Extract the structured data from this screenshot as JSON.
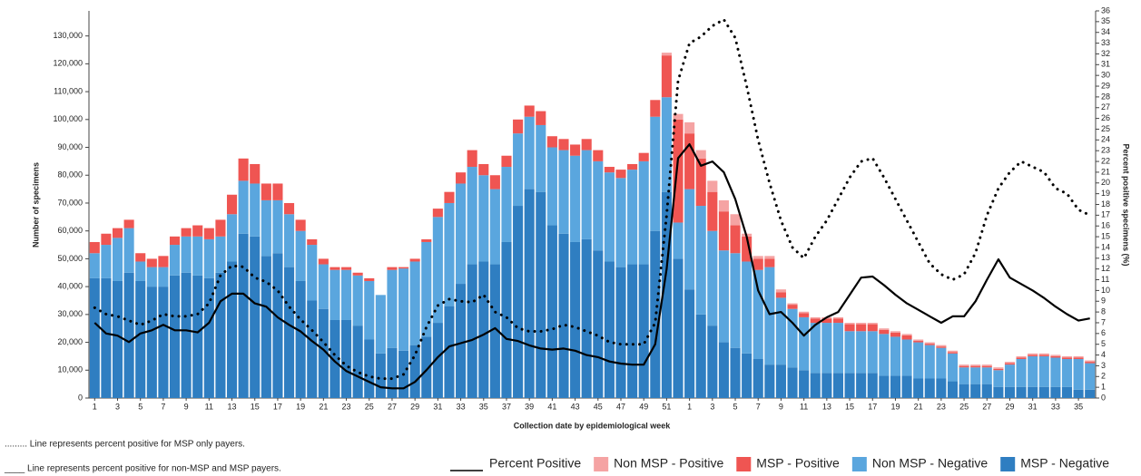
{
  "chart_data": {
    "type": "stacked-bar",
    "x_label": "Collection date by epidemiological week",
    "y_label": "Number of specimens",
    "y2_label": "Percent positive specimens (%)",
    "notes": [
      "......... Line represents percent positive for MSP only payers.",
      "____ Line represents percent positive for non-MSP and MSP payers."
    ],
    "categories": [
      "1",
      null,
      "3",
      null,
      "5",
      null,
      "7",
      null,
      "9",
      null,
      "11",
      null,
      "13",
      null,
      "15",
      null,
      "17",
      null,
      "19",
      null,
      "21",
      null,
      "23",
      null,
      "25",
      null,
      "27",
      null,
      "29",
      null,
      "31",
      null,
      "33",
      null,
      "35",
      null,
      "37",
      null,
      "39",
      null,
      "41",
      null,
      "43",
      null,
      "45",
      null,
      "47",
      null,
      "49",
      null,
      "51",
      null,
      "1",
      null,
      "3",
      null,
      "5",
      null,
      "7",
      null,
      "9",
      null,
      "11",
      null,
      "13",
      null,
      "15",
      null,
      "17",
      null,
      "19",
      null,
      "21",
      null,
      "23",
      null,
      "25",
      null,
      "27",
      null,
      "29",
      null,
      "31",
      null,
      "33",
      null,
      "35",
      null
    ],
    "ylim": [
      0,
      139000
    ],
    "yticks": [
      0,
      {
        "value": 10000,
        "label": "10,000"
      },
      {
        "value": 20000,
        "label": "20,000"
      },
      {
        "value": 30000,
        "label": "30,000"
      },
      {
        "value": 40000,
        "label": "40,000"
      },
      {
        "value": 50000,
        "label": "50,000"
      },
      {
        "value": 60000,
        "label": "60,000"
      },
      {
        "value": 70000,
        "label": "70,000"
      },
      {
        "value": 80000,
        "label": "80,000"
      },
      {
        "value": 90000,
        "label": "90,000"
      },
      {
        "value": 100000,
        "label": "100,000"
      },
      {
        "value": 110000,
        "label": "110,000"
      },
      {
        "value": 120000,
        "label": "120,000"
      },
      {
        "value": 130000,
        "label": "130,000"
      }
    ],
    "y2lim": [
      0,
      36
    ],
    "y2ticks": [
      0,
      1,
      2,
      3,
      4,
      5,
      6,
      7,
      8,
      9,
      10,
      11,
      12,
      13,
      14,
      15,
      16,
      17,
      18,
      19,
      20,
      21,
      22,
      23,
      24,
      25,
      26,
      27,
      28,
      29,
      30,
      31,
      32,
      33,
      34,
      35,
      36
    ],
    "series": [
      {
        "name": "MSP - Negative",
        "color": "#2f7ec1",
        "values": [
          43000,
          43000,
          42000,
          45000,
          42000,
          40000,
          40000,
          44000,
          45000,
          44000,
          43000,
          45000,
          49000,
          59000,
          58000,
          51000,
          52000,
          47000,
          42000,
          35000,
          32000,
          28000,
          28000,
          26000,
          21000,
          16000,
          18000,
          17000,
          19000,
          22000,
          27000,
          33000,
          41000,
          48000,
          49000,
          48000,
          56000,
          69000,
          75000,
          74000,
          62000,
          59000,
          56000,
          57000,
          53000,
          49000,
          47000,
          48000,
          48000,
          60000,
          74000,
          50000,
          39000,
          30000,
          26000,
          20000,
          18000,
          16000,
          14000,
          12000,
          12000,
          11000,
          10000,
          9000,
          9000,
          9000,
          9000,
          9000,
          9000,
          8000,
          8000,
          8000,
          7000,
          7000,
          7000,
          6000,
          5000,
          5000,
          5000,
          4000,
          4000,
          4000,
          4000,
          4000,
          4000,
          4000,
          3000,
          3000
        ]
      },
      {
        "name": "Non MSP - Negative",
        "color": "#5aa6de",
        "values": [
          9000,
          12000,
          15500,
          16000,
          7000,
          7000,
          7000,
          11000,
          13000,
          14000,
          14000,
          13000,
          17000,
          19000,
          19000,
          20000,
          19000,
          19000,
          18000,
          20000,
          16000,
          18000,
          18000,
          18000,
          21000,
          21000,
          28000,
          29500,
          30000,
          34000,
          38000,
          37000,
          36000,
          35000,
          31000,
          27000,
          27000,
          26000,
          26000,
          24000,
          28000,
          30000,
          31000,
          32000,
          32000,
          32000,
          32000,
          34000,
          37000,
          41000,
          34000,
          13000,
          36000,
          39000,
          34000,
          33000,
          34000,
          33000,
          32000,
          35000,
          24000,
          21000,
          19000,
          18000,
          18000,
          18000,
          15000,
          15000,
          15000,
          15000,
          14000,
          13000,
          13000,
          12000,
          11000,
          10000,
          6000,
          6000,
          6000,
          6000,
          8000,
          10000,
          11000,
          11000,
          10500,
          10000,
          11000,
          9500
        ]
      },
      {
        "name": "MSP - Positive",
        "color": "#ef5552",
        "values": [
          4000,
          4000,
          3500,
          3000,
          3000,
          3000,
          4000,
          3000,
          3000,
          4000,
          4000,
          6000,
          7000,
          8000,
          7000,
          6000,
          6000,
          4000,
          4000,
          2000,
          2000,
          1000,
          1000,
          1000,
          1000,
          0,
          1000,
          500,
          1000,
          1000,
          3000,
          4000,
          4000,
          6000,
          4000,
          5000,
          4000,
          5000,
          4000,
          5000,
          4000,
          4000,
          4000,
          4000,
          4000,
          2000,
          3000,
          2000,
          3000,
          6000,
          15000,
          37000,
          20000,
          17000,
          14000,
          14000,
          10000,
          9000,
          4000,
          3000,
          2000,
          1500,
          1500,
          1500,
          1500,
          1500,
          2500,
          2500,
          2500,
          1500,
          1500,
          1500,
          500,
          500,
          500,
          500,
          500,
          500,
          500,
          500,
          500,
          500,
          500,
          500,
          500,
          500,
          500,
          500
        ]
      },
      {
        "name": "Non MSP - Positive",
        "color": "#f5a3a3",
        "values": [
          0,
          0,
          0,
          0,
          0,
          0,
          0,
          0,
          0,
          0,
          0,
          0,
          0,
          0,
          0,
          0,
          0,
          0,
          0,
          0,
          0,
          0,
          0,
          0,
          0,
          0,
          0,
          0,
          0,
          0,
          0,
          0,
          0,
          0,
          0,
          0,
          0,
          0,
          0,
          0,
          0,
          0,
          0,
          0,
          0,
          0,
          0,
          0,
          0,
          0,
          1000,
          2000,
          4000,
          3000,
          4000,
          4000,
          4000,
          1000,
          1000,
          1000,
          1000,
          500,
          500,
          500,
          500,
          500,
          500,
          500,
          500,
          500,
          500,
          500,
          500,
          500,
          500,
          500,
          500,
          500,
          500,
          500,
          500,
          500,
          500,
          500,
          500,
          500,
          500,
          500
        ]
      }
    ],
    "lines": [
      {
        "name": "Percent Positive",
        "axis": "y2",
        "color": "#000000",
        "style": "solid",
        "values": [
          7,
          6,
          5.8,
          5.2,
          6,
          6.3,
          6.8,
          6.3,
          6.3,
          6.1,
          7,
          9,
          9.7,
          9.7,
          8.8,
          8.5,
          7.5,
          6.8,
          6.2,
          5.3,
          4.5,
          3.4,
          2.5,
          2,
          1.5,
          1,
          0.9,
          0.9,
          1.5,
          2.6,
          3.8,
          4.8,
          5.1,
          5.4,
          5.9,
          6.5,
          5.5,
          5.3,
          4.9,
          4.6,
          4.5,
          4.6,
          4.4,
          4,
          3.8,
          3.4,
          3.2,
          3.1,
          3.1,
          5,
          12,
          22.3,
          23.6,
          21.6,
          22,
          21,
          18.5,
          15,
          10,
          7.8,
          8,
          7,
          5.8,
          6.8,
          7.5,
          8,
          9.6,
          11.2,
          11.3,
          10.5,
          9.6,
          8.8,
          8.2,
          7.6,
          7,
          7.6,
          7.6,
          9,
          11,
          12.9,
          11.2,
          10.6,
          10,
          9.3,
          8.5,
          7.8,
          7.2,
          7.4
        ]
      },
      {
        "axis": "y2",
        "color": "#000000",
        "style": "dotted",
        "values": [
          8.4,
          7.8,
          7.6,
          7.2,
          6.8,
          7.2,
          7.8,
          7.6,
          7.6,
          7.8,
          8.8,
          11.4,
          12.3,
          12.2,
          11.2,
          10.8,
          10,
          8.5,
          7.3,
          6.3,
          5.2,
          4,
          3,
          2.4,
          2,
          1.8,
          1.8,
          2.2,
          4,
          6.6,
          8.6,
          9.2,
          9,
          8.9,
          9.6,
          8,
          7.5,
          6.5,
          6.2,
          6.2,
          6.4,
          6.8,
          6.6,
          6.2,
          5.8,
          5.2,
          5,
          5,
          5,
          7,
          17,
          29.5,
          33,
          33.6,
          34.6,
          35.2,
          33.5,
          29,
          24,
          20,
          16.5,
          14,
          13,
          15,
          16.5,
          18.5,
          20.5,
          22,
          22.3,
          20.5,
          18.5,
          16.5,
          14.5,
          12.5,
          11.5,
          11,
          11.5,
          13.5,
          17,
          19.5,
          21,
          22,
          21.5,
          21,
          19.5,
          19,
          17.5,
          17
        ]
      }
    ]
  }
}
